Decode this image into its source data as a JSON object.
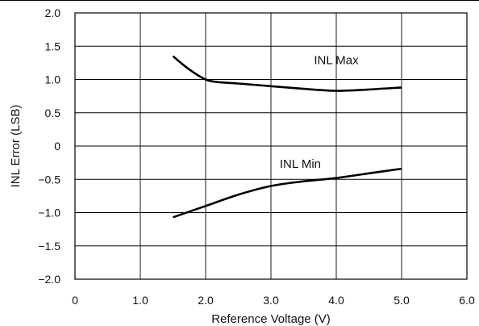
{
  "chart_data": {
    "type": "line",
    "xlabel": "Reference Voltage (V)",
    "ylabel": "INL Error (LSB)",
    "xlim": [
      0,
      6.0
    ],
    "ylim": [
      -2.0,
      2.0
    ],
    "x_ticks": [
      "0",
      "1.0",
      "2.0",
      "3.0",
      "4.0",
      "5.0",
      "6.0"
    ],
    "y_ticks": [
      "2.0",
      "1.5",
      "1.0",
      "0.5",
      "0",
      "-0.5",
      "-1.0",
      "-1.5",
      "-2.0"
    ],
    "grid": true,
    "series": [
      {
        "name": "INL Max",
        "x": [
          1.5,
          1.75,
          2.0,
          2.2,
          2.5,
          3.0,
          3.5,
          4.0,
          4.5,
          5.0
        ],
        "y": [
          1.35,
          1.15,
          1.0,
          0.96,
          0.94,
          0.9,
          0.86,
          0.83,
          0.85,
          0.88
        ]
      },
      {
        "name": "INL Min",
        "x": [
          1.5,
          2.0,
          2.5,
          3.0,
          3.5,
          4.0,
          4.5,
          5.0
        ],
        "y": [
          -1.07,
          -0.9,
          -0.73,
          -0.6,
          -0.53,
          -0.48,
          -0.41,
          -0.34
        ]
      }
    ]
  }
}
